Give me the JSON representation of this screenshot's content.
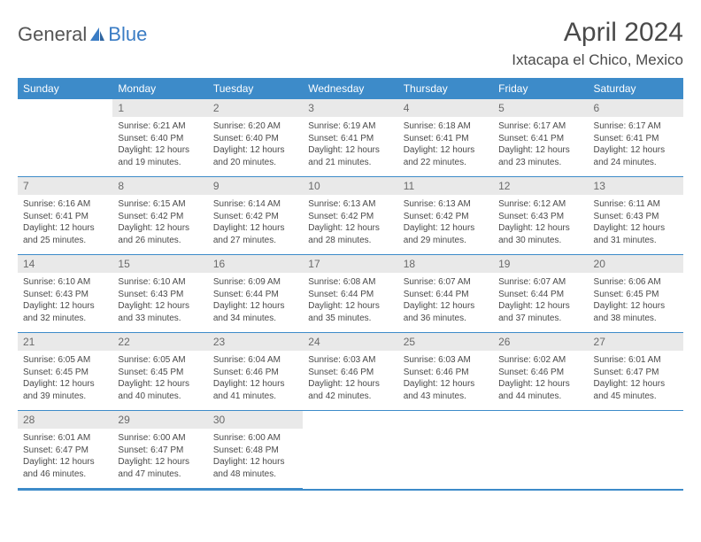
{
  "logo": {
    "word1": "General",
    "word2": "Blue"
  },
  "title": "April 2024",
  "location": "Ixtacapa el Chico, Mexico",
  "colors": {
    "header_bg": "#3d8bc9",
    "header_text": "#ffffff",
    "daynum_bg": "#e9e9e9",
    "daynum_text": "#6a6a6a",
    "body_text": "#4a4a4a",
    "rule": "#3d8bc9",
    "logo_gray": "#555555",
    "logo_blue": "#3a7cc4",
    "page_bg": "#ffffff"
  },
  "typography": {
    "title_fontsize": 30,
    "location_fontsize": 17,
    "header_fontsize": 12,
    "daynum_fontsize": 12,
    "body_fontsize": 10
  },
  "weekdays": [
    "Sunday",
    "Monday",
    "Tuesday",
    "Wednesday",
    "Thursday",
    "Friday",
    "Saturday"
  ],
  "weeks": [
    [
      null,
      {
        "n": "1",
        "sr": "Sunrise: 6:21 AM",
        "ss": "Sunset: 6:40 PM",
        "d1": "Daylight: 12 hours",
        "d2": "and 19 minutes."
      },
      {
        "n": "2",
        "sr": "Sunrise: 6:20 AM",
        "ss": "Sunset: 6:40 PM",
        "d1": "Daylight: 12 hours",
        "d2": "and 20 minutes."
      },
      {
        "n": "3",
        "sr": "Sunrise: 6:19 AM",
        "ss": "Sunset: 6:41 PM",
        "d1": "Daylight: 12 hours",
        "d2": "and 21 minutes."
      },
      {
        "n": "4",
        "sr": "Sunrise: 6:18 AM",
        "ss": "Sunset: 6:41 PM",
        "d1": "Daylight: 12 hours",
        "d2": "and 22 minutes."
      },
      {
        "n": "5",
        "sr": "Sunrise: 6:17 AM",
        "ss": "Sunset: 6:41 PM",
        "d1": "Daylight: 12 hours",
        "d2": "and 23 minutes."
      },
      {
        "n": "6",
        "sr": "Sunrise: 6:17 AM",
        "ss": "Sunset: 6:41 PM",
        "d1": "Daylight: 12 hours",
        "d2": "and 24 minutes."
      }
    ],
    [
      {
        "n": "7",
        "sr": "Sunrise: 6:16 AM",
        "ss": "Sunset: 6:41 PM",
        "d1": "Daylight: 12 hours",
        "d2": "and 25 minutes."
      },
      {
        "n": "8",
        "sr": "Sunrise: 6:15 AM",
        "ss": "Sunset: 6:42 PM",
        "d1": "Daylight: 12 hours",
        "d2": "and 26 minutes."
      },
      {
        "n": "9",
        "sr": "Sunrise: 6:14 AM",
        "ss": "Sunset: 6:42 PM",
        "d1": "Daylight: 12 hours",
        "d2": "and 27 minutes."
      },
      {
        "n": "10",
        "sr": "Sunrise: 6:13 AM",
        "ss": "Sunset: 6:42 PM",
        "d1": "Daylight: 12 hours",
        "d2": "and 28 minutes."
      },
      {
        "n": "11",
        "sr": "Sunrise: 6:13 AM",
        "ss": "Sunset: 6:42 PM",
        "d1": "Daylight: 12 hours",
        "d2": "and 29 minutes."
      },
      {
        "n": "12",
        "sr": "Sunrise: 6:12 AM",
        "ss": "Sunset: 6:43 PM",
        "d1": "Daylight: 12 hours",
        "d2": "and 30 minutes."
      },
      {
        "n": "13",
        "sr": "Sunrise: 6:11 AM",
        "ss": "Sunset: 6:43 PM",
        "d1": "Daylight: 12 hours",
        "d2": "and 31 minutes."
      }
    ],
    [
      {
        "n": "14",
        "sr": "Sunrise: 6:10 AM",
        "ss": "Sunset: 6:43 PM",
        "d1": "Daylight: 12 hours",
        "d2": "and 32 minutes."
      },
      {
        "n": "15",
        "sr": "Sunrise: 6:10 AM",
        "ss": "Sunset: 6:43 PM",
        "d1": "Daylight: 12 hours",
        "d2": "and 33 minutes."
      },
      {
        "n": "16",
        "sr": "Sunrise: 6:09 AM",
        "ss": "Sunset: 6:44 PM",
        "d1": "Daylight: 12 hours",
        "d2": "and 34 minutes."
      },
      {
        "n": "17",
        "sr": "Sunrise: 6:08 AM",
        "ss": "Sunset: 6:44 PM",
        "d1": "Daylight: 12 hours",
        "d2": "and 35 minutes."
      },
      {
        "n": "18",
        "sr": "Sunrise: 6:07 AM",
        "ss": "Sunset: 6:44 PM",
        "d1": "Daylight: 12 hours",
        "d2": "and 36 minutes."
      },
      {
        "n": "19",
        "sr": "Sunrise: 6:07 AM",
        "ss": "Sunset: 6:44 PM",
        "d1": "Daylight: 12 hours",
        "d2": "and 37 minutes."
      },
      {
        "n": "20",
        "sr": "Sunrise: 6:06 AM",
        "ss": "Sunset: 6:45 PM",
        "d1": "Daylight: 12 hours",
        "d2": "and 38 minutes."
      }
    ],
    [
      {
        "n": "21",
        "sr": "Sunrise: 6:05 AM",
        "ss": "Sunset: 6:45 PM",
        "d1": "Daylight: 12 hours",
        "d2": "and 39 minutes."
      },
      {
        "n": "22",
        "sr": "Sunrise: 6:05 AM",
        "ss": "Sunset: 6:45 PM",
        "d1": "Daylight: 12 hours",
        "d2": "and 40 minutes."
      },
      {
        "n": "23",
        "sr": "Sunrise: 6:04 AM",
        "ss": "Sunset: 6:46 PM",
        "d1": "Daylight: 12 hours",
        "d2": "and 41 minutes."
      },
      {
        "n": "24",
        "sr": "Sunrise: 6:03 AM",
        "ss": "Sunset: 6:46 PM",
        "d1": "Daylight: 12 hours",
        "d2": "and 42 minutes."
      },
      {
        "n": "25",
        "sr": "Sunrise: 6:03 AM",
        "ss": "Sunset: 6:46 PM",
        "d1": "Daylight: 12 hours",
        "d2": "and 43 minutes."
      },
      {
        "n": "26",
        "sr": "Sunrise: 6:02 AM",
        "ss": "Sunset: 6:46 PM",
        "d1": "Daylight: 12 hours",
        "d2": "and 44 minutes."
      },
      {
        "n": "27",
        "sr": "Sunrise: 6:01 AM",
        "ss": "Sunset: 6:47 PM",
        "d1": "Daylight: 12 hours",
        "d2": "and 45 minutes."
      }
    ],
    [
      {
        "n": "28",
        "sr": "Sunrise: 6:01 AM",
        "ss": "Sunset: 6:47 PM",
        "d1": "Daylight: 12 hours",
        "d2": "and 46 minutes."
      },
      {
        "n": "29",
        "sr": "Sunrise: 6:00 AM",
        "ss": "Sunset: 6:47 PM",
        "d1": "Daylight: 12 hours",
        "d2": "and 47 minutes."
      },
      {
        "n": "30",
        "sr": "Sunrise: 6:00 AM",
        "ss": "Sunset: 6:48 PM",
        "d1": "Daylight: 12 hours",
        "d2": "and 48 minutes."
      },
      null,
      null,
      null,
      null
    ]
  ]
}
